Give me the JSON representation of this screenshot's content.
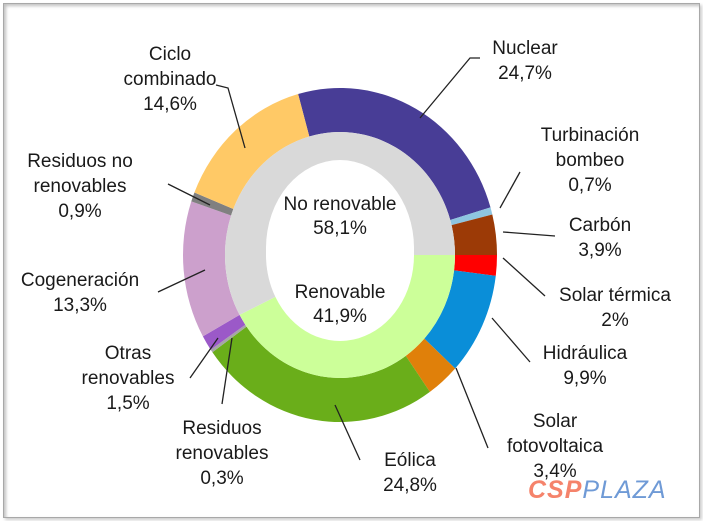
{
  "chart_data": {
    "type": "pie",
    "subtype": "donut-nested",
    "title": "",
    "inner_ring": [
      {
        "label": "Renovable",
        "value": 41.9,
        "display": "41,9%",
        "color": "#ccff99"
      },
      {
        "label": "No renovable",
        "value": 58.1,
        "display": "58,1%",
        "color": "#d9d9d9"
      }
    ],
    "outer_ring": [
      {
        "label": [
          "Nuclear"
        ],
        "value": 24.7,
        "display": "24,7%",
        "color": "#483d96"
      },
      {
        "label": [
          "Turbinación",
          "bombeo"
        ],
        "value": 0.7,
        "display": "0,7%",
        "color": "#8ec5e0"
      },
      {
        "label": [
          "Carbón"
        ],
        "value": 3.9,
        "display": "3,9%",
        "color": "#9c3a06"
      },
      {
        "label": [
          "Solar térmica"
        ],
        "value": 2,
        "display": "2%",
        "color": "#ff0000"
      },
      {
        "label": [
          "Hidráulica"
        ],
        "value": 9.9,
        "display": "9,9%",
        "color": "#0a8ed8"
      },
      {
        "label": [
          "Solar",
          "fotovoltaica"
        ],
        "value": 3.4,
        "display": "3,4%",
        "color": "#e0800a"
      },
      {
        "label": [
          "Eólica"
        ],
        "value": 24.8,
        "display": "24,8%",
        "color": "#6aae1a"
      },
      {
        "label": [
          "Residuos",
          "renovables"
        ],
        "value": 0.3,
        "display": "0,3%",
        "color": "#a6a6a6"
      },
      {
        "label": [
          "Otras",
          "renovables"
        ],
        "value": 1.5,
        "display": "1,5%",
        "color": "#9b59c8"
      },
      {
        "label": [
          "Cogeneración"
        ],
        "value": 13.3,
        "display": "13,3%",
        "color": "#cca0cc"
      },
      {
        "label": [
          "Residuos no",
          "renovables"
        ],
        "value": 0.9,
        "display": "0,9%",
        "color": "#808080"
      },
      {
        "label": [
          "Ciclo",
          "combinado"
        ],
        "value": 14.6,
        "display": "14,6%",
        "color": "#ffc966"
      }
    ]
  },
  "watermark": {
    "part1": "CSP",
    "part2": "PLAZA"
  }
}
